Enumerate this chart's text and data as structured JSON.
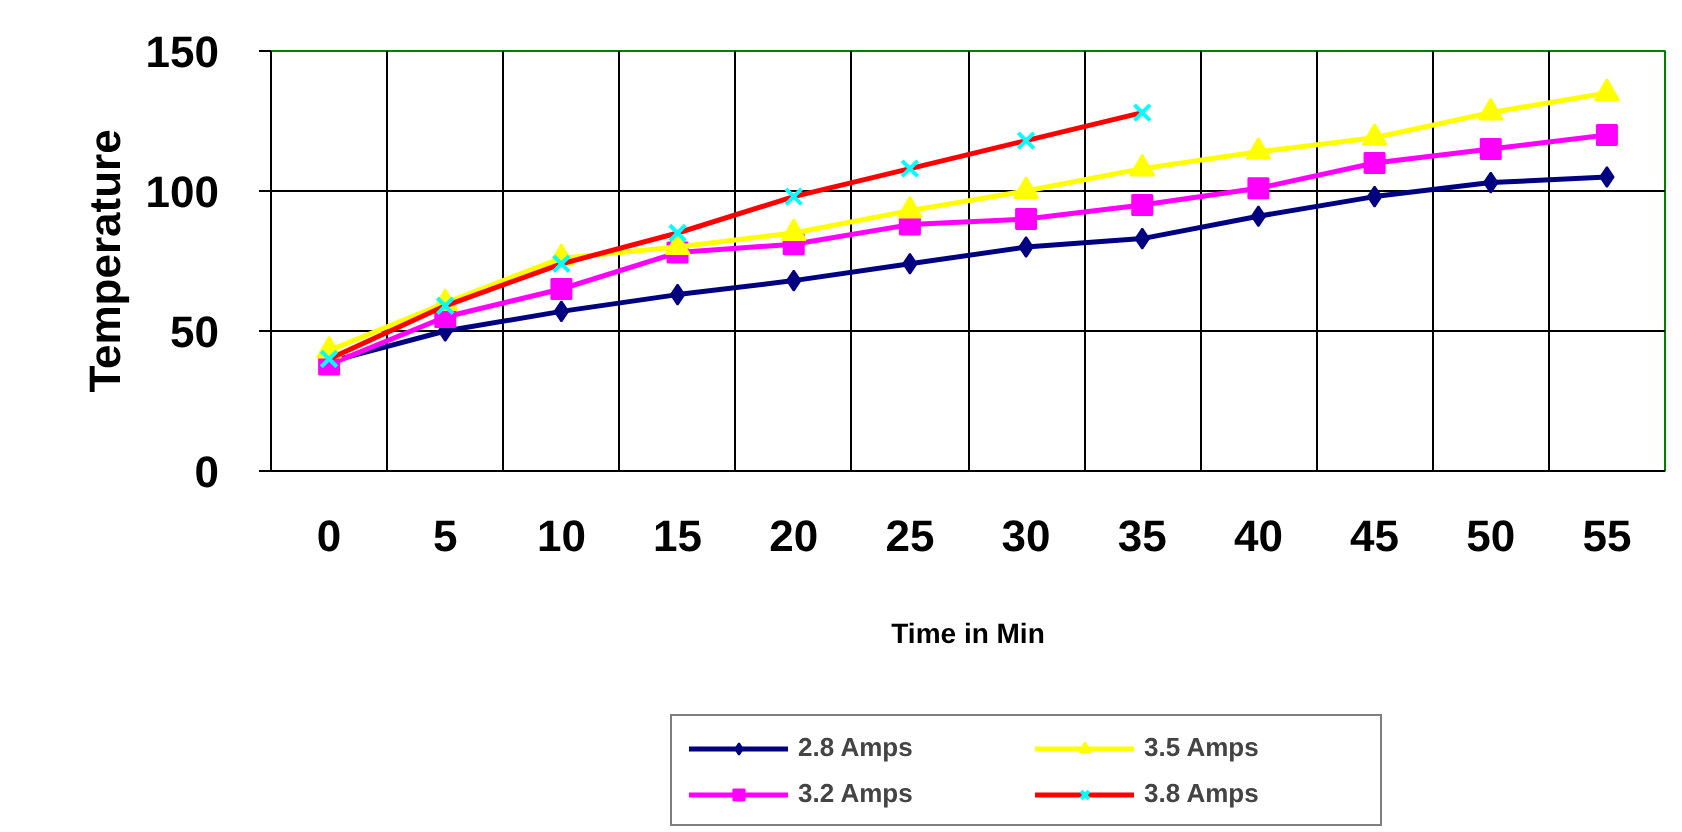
{
  "chart_data": {
    "type": "line",
    "xlabel": "Time in Min",
    "ylabel": "Temperature",
    "categories": [
      "0",
      "5",
      "10",
      "15",
      "20",
      "25",
      "30",
      "35",
      "40",
      "45",
      "50",
      "55"
    ],
    "ylim": [
      0,
      150
    ],
    "yticks": [
      0,
      50,
      100,
      150
    ],
    "grid": true,
    "legend": "bottom",
    "series": [
      {
        "name": "2.8 Amps",
        "color": "#000080",
        "marker": "diamond",
        "values": [
          39,
          50,
          57,
          63,
          68,
          74,
          80,
          83,
          91,
          98,
          103,
          105
        ]
      },
      {
        "name": "3.2 Amps",
        "color": "#ff00ff",
        "marker": "square",
        "values": [
          38,
          55,
          65,
          78,
          81,
          88,
          90,
          95,
          101,
          110,
          115,
          120
        ]
      },
      {
        "name": "3.5 Amps",
        "color": "#ffff00",
        "marker": "triangle",
        "values": [
          43,
          60,
          76,
          80,
          85,
          93,
          100,
          108,
          114,
          119,
          128,
          135
        ]
      },
      {
        "name": "3.8 Amps",
        "color": "#ff0000",
        "marker": "cross",
        "colors": [
          "#00ffff",
          "#00ffff",
          "#00ffff",
          "#00ffff",
          "#00ffff",
          "#00ffff",
          "#00ffff",
          "#00ffff",
          "#00ffff",
          "#00ffff",
          "#00ffff",
          "#00ffff"
        ],
        "values": [
          40,
          59,
          74,
          85,
          98,
          108,
          118,
          128,
          null,
          null,
          null,
          null
        ]
      }
    ]
  }
}
